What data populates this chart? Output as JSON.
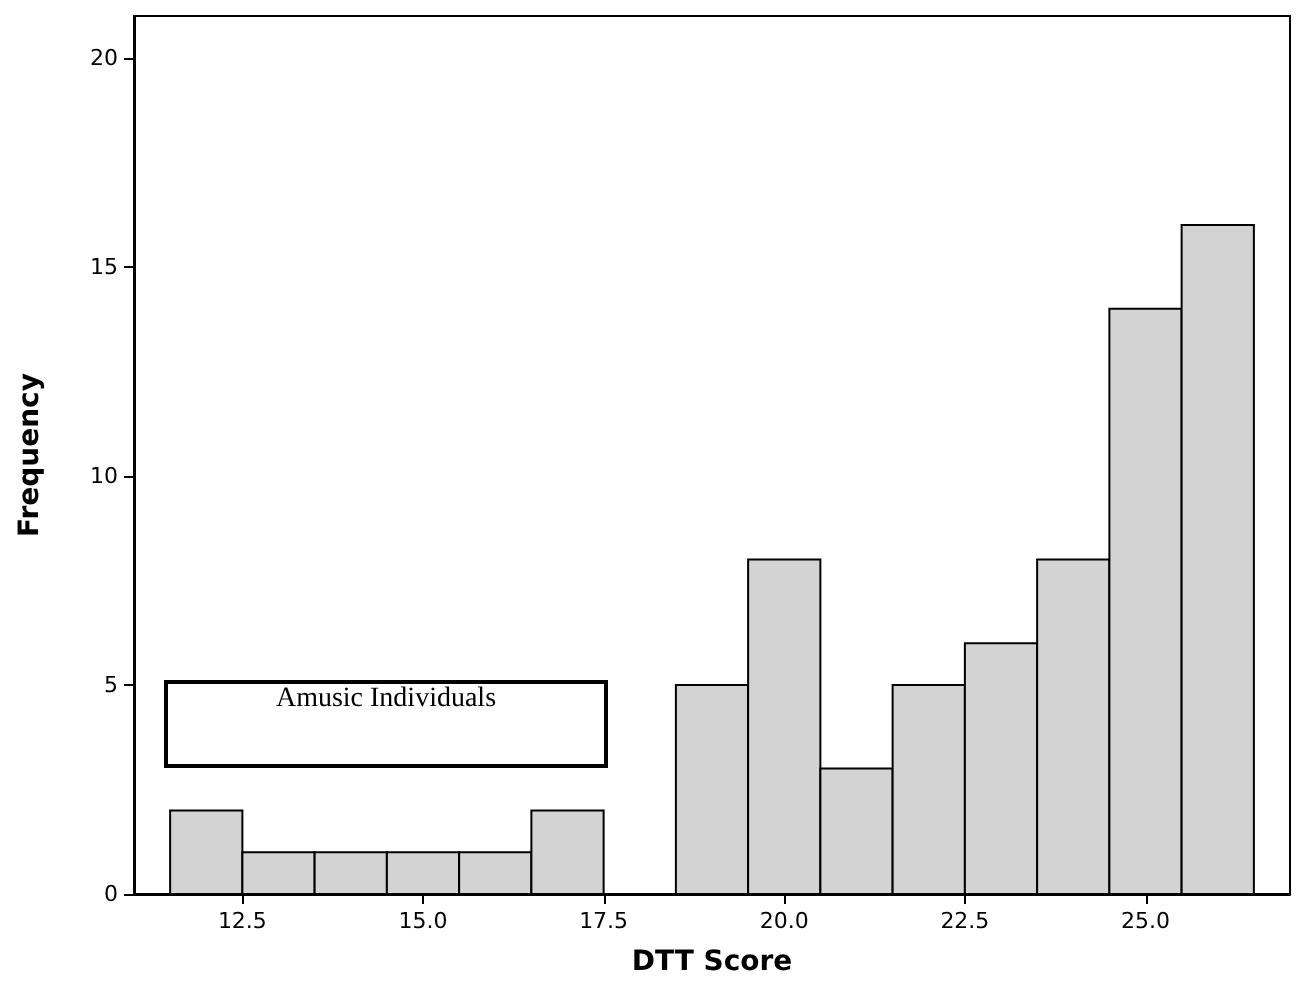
{
  "chart_data": {
    "type": "histogram",
    "xlabel": "DTT Score",
    "ylabel": "Frequency",
    "bins": [
      11.5,
      12.5,
      13.5,
      14.5,
      15.5,
      16.5,
      17.5,
      18.5,
      19.5,
      20.5,
      21.5,
      22.5,
      23.5,
      24.5,
      25.5,
      26.5
    ],
    "values": [
      2,
      1,
      1,
      1,
      1,
      2,
      0,
      5,
      8,
      3,
      5,
      6,
      8,
      14,
      16
    ],
    "color": "#d3d3d3",
    "xlim": [
      11,
      27
    ],
    "xticks": [
      12.5,
      {
        "value": 15,
        "label": "15.0"
      },
      17.5,
      {
        "value": 20,
        "label": "20.0"
      },
      22.5,
      {
        "value": 25,
        "label": "25.0"
      }
    ],
    "ylim": [
      0,
      21
    ],
    "yticks": [
      0,
      5,
      10,
      15,
      20
    ],
    "grid": false,
    "annotations": [
      "Amusic Individuals"
    ]
  }
}
